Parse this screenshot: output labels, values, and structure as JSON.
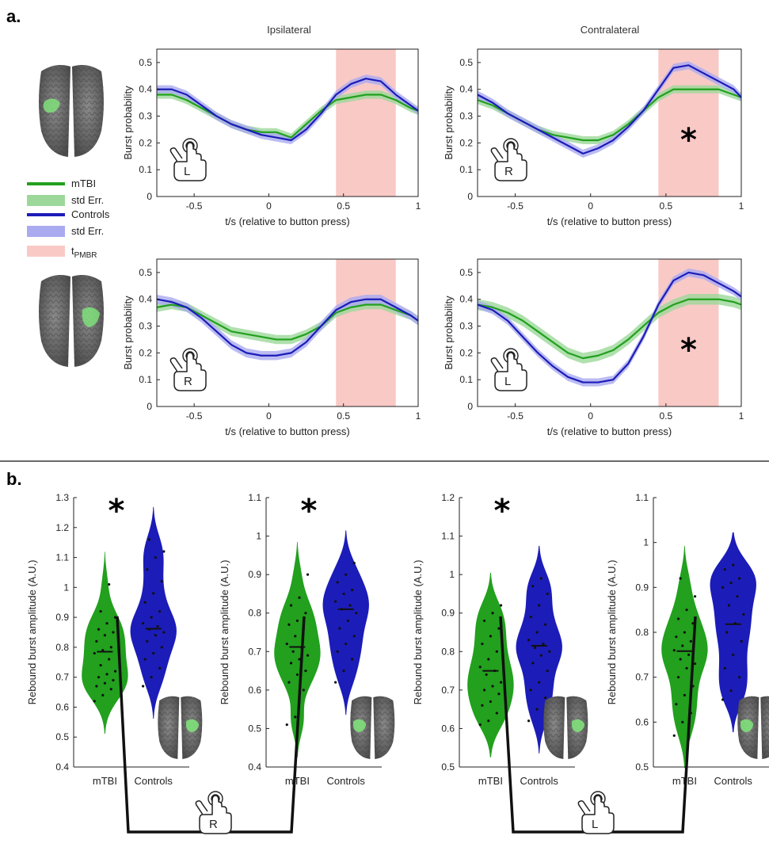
{
  "panel_a_label": "a.",
  "panel_b_label": "b.",
  "col_titles": [
    "Ipsilateral",
    "Contralateral"
  ],
  "colors": {
    "mtbi": "#22a01e",
    "mtbi_err": "#9cd89a",
    "controls": "#1c1cb8",
    "controls_err": "#aaaaf0",
    "pmbr": "#f9c9c6",
    "brain": "#6e6e6e",
    "brain_roi": "#7fe07a"
  },
  "legend": {
    "mtbi": "mTBI",
    "mtbi_err": "std Err.",
    "controls": "Controls",
    "controls_err": "std Err.",
    "pmbr_base": "t",
    "pmbr_sub": "PMBR"
  },
  "chart_data": [
    {
      "type": "line",
      "panel": "a-top-ipsilateral",
      "hand": "L",
      "xlabel": "t/s (relative to button press)",
      "ylabel": "Burst probability",
      "xlim": [
        -0.75,
        1
      ],
      "ylim": [
        0,
        0.55
      ],
      "xticks": [
        -0.5,
        0,
        0.5,
        1
      ],
      "xtick_labels": [
        "-0.5",
        "0",
        "0.5",
        "1"
      ],
      "yticks": [
        0,
        0.1,
        0.2,
        0.3,
        0.4,
        0.5
      ],
      "ytick_labels": [
        "0",
        "0.1",
        "0.2",
        "0.3",
        "0.4",
        "0.5"
      ],
      "pmbr_window": [
        0.45,
        0.85
      ],
      "significant": false,
      "x": [
        -0.75,
        -0.65,
        -0.55,
        -0.45,
        -0.35,
        -0.25,
        -0.15,
        -0.05,
        0.05,
        0.15,
        0.25,
        0.35,
        0.45,
        0.55,
        0.65,
        0.75,
        0.85,
        0.95,
        1.0
      ],
      "series": [
        {
          "name": "mTBI",
          "values": [
            0.38,
            0.38,
            0.36,
            0.33,
            0.3,
            0.27,
            0.25,
            0.24,
            0.24,
            0.22,
            0.27,
            0.32,
            0.36,
            0.37,
            0.38,
            0.38,
            0.36,
            0.33,
            0.32
          ],
          "err": 0.015
        },
        {
          "name": "Controls",
          "values": [
            0.4,
            0.4,
            0.38,
            0.34,
            0.3,
            0.27,
            0.25,
            0.23,
            0.22,
            0.21,
            0.25,
            0.31,
            0.38,
            0.42,
            0.44,
            0.43,
            0.38,
            0.34,
            0.32
          ],
          "err": 0.015
        }
      ]
    },
    {
      "type": "line",
      "panel": "a-top-contralateral",
      "hand": "R",
      "xlabel": "t/s (relative to button press)",
      "ylabel": "Burst probability",
      "xlim": [
        -0.75,
        1
      ],
      "ylim": [
        0,
        0.55
      ],
      "xticks": [
        -0.5,
        0,
        0.5,
        1
      ],
      "xtick_labels": [
        "-0.5",
        "0",
        "0.5",
        "1"
      ],
      "yticks": [
        0,
        0.1,
        0.2,
        0.3,
        0.4,
        0.5
      ],
      "ytick_labels": [
        "0",
        "0.1",
        "0.2",
        "0.3",
        "0.4",
        "0.5"
      ],
      "pmbr_window": [
        0.45,
        0.85
      ],
      "significant": true,
      "x": [
        -0.75,
        -0.65,
        -0.55,
        -0.45,
        -0.35,
        -0.25,
        -0.15,
        -0.05,
        0.05,
        0.15,
        0.25,
        0.35,
        0.45,
        0.55,
        0.65,
        0.75,
        0.85,
        0.95,
        1.0
      ],
      "series": [
        {
          "name": "mTBI",
          "values": [
            0.36,
            0.34,
            0.31,
            0.28,
            0.25,
            0.23,
            0.22,
            0.21,
            0.21,
            0.23,
            0.27,
            0.32,
            0.37,
            0.4,
            0.4,
            0.4,
            0.4,
            0.38,
            0.37
          ],
          "err": 0.015
        },
        {
          "name": "Controls",
          "values": [
            0.38,
            0.35,
            0.31,
            0.28,
            0.25,
            0.22,
            0.19,
            0.16,
            0.18,
            0.21,
            0.26,
            0.32,
            0.4,
            0.48,
            0.49,
            0.46,
            0.43,
            0.4,
            0.37
          ],
          "err": 0.015
        }
      ]
    },
    {
      "type": "line",
      "panel": "a-bottom-ipsilateral",
      "hand": "R",
      "xlabel": "t/s (relative to button press)",
      "ylabel": "Burst probability",
      "xlim": [
        -0.75,
        1
      ],
      "ylim": [
        0,
        0.55
      ],
      "xticks": [
        -0.5,
        0,
        0.5,
        1
      ],
      "xtick_labels": [
        "-0.5",
        "0",
        "0.5",
        "1"
      ],
      "yticks": [
        0,
        0.1,
        0.2,
        0.3,
        0.4,
        0.5
      ],
      "ytick_labels": [
        "0",
        "0.1",
        "0.2",
        "0.3",
        "0.4",
        "0.5"
      ],
      "pmbr_window": [
        0.45,
        0.85
      ],
      "significant": false,
      "x": [
        -0.75,
        -0.65,
        -0.55,
        -0.45,
        -0.35,
        -0.25,
        -0.15,
        -0.05,
        0.05,
        0.15,
        0.25,
        0.35,
        0.45,
        0.55,
        0.65,
        0.75,
        0.85,
        0.95,
        1.0
      ],
      "series": [
        {
          "name": "mTBI",
          "values": [
            0.37,
            0.38,
            0.37,
            0.34,
            0.31,
            0.28,
            0.27,
            0.26,
            0.25,
            0.25,
            0.27,
            0.3,
            0.35,
            0.37,
            0.38,
            0.38,
            0.36,
            0.34,
            0.32
          ],
          "err": 0.017
        },
        {
          "name": "Controls",
          "values": [
            0.4,
            0.39,
            0.37,
            0.33,
            0.28,
            0.23,
            0.2,
            0.19,
            0.19,
            0.2,
            0.24,
            0.3,
            0.36,
            0.39,
            0.4,
            0.4,
            0.37,
            0.34,
            0.32
          ],
          "err": 0.017
        }
      ]
    },
    {
      "type": "line",
      "panel": "a-bottom-contralateral",
      "hand": "L",
      "xlabel": "t/s (relative to button press)",
      "ylabel": "Burst probability",
      "xlim": [
        -0.75,
        1
      ],
      "ylim": [
        0,
        0.55
      ],
      "xticks": [
        -0.5,
        0,
        0.5,
        1
      ],
      "xtick_labels": [
        "-0.5",
        "0",
        "0.5",
        "1"
      ],
      "yticks": [
        0,
        0.1,
        0.2,
        0.3,
        0.4,
        0.5
      ],
      "ytick_labels": [
        "0",
        "0.1",
        "0.2",
        "0.3",
        "0.4",
        "0.5"
      ],
      "pmbr_window": [
        0.45,
        0.85
      ],
      "significant": true,
      "x": [
        -0.75,
        -0.65,
        -0.55,
        -0.45,
        -0.35,
        -0.25,
        -0.15,
        -0.05,
        0.05,
        0.15,
        0.25,
        0.35,
        0.45,
        0.55,
        0.65,
        0.75,
        0.85,
        0.95,
        1.0
      ],
      "series": [
        {
          "name": "mTBI",
          "values": [
            0.38,
            0.37,
            0.35,
            0.32,
            0.28,
            0.24,
            0.2,
            0.18,
            0.19,
            0.21,
            0.25,
            0.3,
            0.35,
            0.38,
            0.4,
            0.4,
            0.4,
            0.39,
            0.38
          ],
          "err": 0.02
        },
        {
          "name": "Controls",
          "values": [
            0.38,
            0.36,
            0.32,
            0.26,
            0.2,
            0.15,
            0.11,
            0.09,
            0.09,
            0.1,
            0.16,
            0.26,
            0.38,
            0.47,
            0.5,
            0.49,
            0.46,
            0.43,
            0.41
          ],
          "err": 0.015
        }
      ]
    },
    {
      "type": "violin",
      "panel": "b1",
      "categories": [
        "mTBI",
        "Controls"
      ],
      "ylabel": "Rebound burst amplitude (A.U.)",
      "ylim": [
        0.4,
        1.3
      ],
      "yticks": [
        0.4,
        0.5,
        0.6,
        0.7,
        0.8,
        0.9,
        1.0,
        1.1,
        1.2,
        1.3
      ],
      "ytick_labels": [
        "0.4",
        "0.5",
        "0.6",
        "0.7",
        "0.8",
        "0.9",
        "1",
        "1.1",
        "1.2",
        "1.3"
      ],
      "significant": true,
      "medians": [
        0.785,
        0.862
      ],
      "points": [
        [
          0.62,
          0.64,
          0.66,
          0.67,
          0.68,
          0.69,
          0.7,
          0.71,
          0.72,
          0.74,
          0.76,
          0.78,
          0.79,
          0.8,
          0.82,
          0.84,
          0.85,
          0.86,
          0.88,
          0.9,
          0.92,
          1.01
        ],
        [
          0.67,
          0.7,
          0.73,
          0.76,
          0.78,
          0.8,
          0.82,
          0.84,
          0.85,
          0.86,
          0.87,
          0.88,
          0.9,
          0.92,
          0.95,
          0.98,
          1.02,
          1.06,
          1.1,
          1.12,
          1.16
        ]
      ]
    },
    {
      "type": "violin",
      "panel": "b2",
      "categories": [
        "mTBI",
        "Controls"
      ],
      "ylabel": "Rebound burst amplitude (A.U.)",
      "ylim": [
        0.4,
        1.1
      ],
      "yticks": [
        0.4,
        0.5,
        0.6,
        0.7,
        0.8,
        0.9,
        1.0,
        1.1
      ],
      "ytick_labels": [
        "0.4",
        "0.5",
        "0.6",
        "0.7",
        "0.8",
        "0.9",
        "1",
        "1.1"
      ],
      "significant": true,
      "medians": [
        0.712,
        0.81
      ],
      "points": [
        [
          0.51,
          0.53,
          0.6,
          0.62,
          0.64,
          0.65,
          0.67,
          0.68,
          0.69,
          0.7,
          0.71,
          0.72,
          0.74,
          0.76,
          0.77,
          0.78,
          0.8,
          0.82,
          0.84,
          0.9
        ],
        [
          0.62,
          0.65,
          0.68,
          0.7,
          0.72,
          0.74,
          0.76,
          0.78,
          0.8,
          0.81,
          0.82,
          0.83,
          0.85,
          0.86,
          0.88,
          0.9,
          0.93
        ]
      ]
    },
    {
      "type": "violin",
      "panel": "b3",
      "categories": [
        "mTBI",
        "Controls"
      ],
      "ylabel": "Rebound burst amplitude (A.U.)",
      "ylim": [
        0.5,
        1.2
      ],
      "yticks": [
        0.5,
        0.6,
        0.7,
        0.8,
        0.9,
        1.0,
        1.1,
        1.2
      ],
      "ytick_labels": [
        "0.5",
        "0.6",
        "0.7",
        "0.8",
        "0.9",
        "1",
        "1.1",
        "1.2"
      ],
      "significant": true,
      "medians": [
        0.75,
        0.815
      ],
      "points": [
        [
          0.61,
          0.62,
          0.64,
          0.66,
          0.67,
          0.69,
          0.7,
          0.71,
          0.72,
          0.74,
          0.75,
          0.76,
          0.78,
          0.8,
          0.82,
          0.84,
          0.86,
          0.88,
          0.9,
          0.92
        ],
        [
          0.62,
          0.65,
          0.68,
          0.7,
          0.72,
          0.75,
          0.77,
          0.79,
          0.8,
          0.81,
          0.82,
          0.83,
          0.85,
          0.87,
          0.89,
          0.92,
          0.95,
          0.97,
          0.99
        ]
      ]
    },
    {
      "type": "violin",
      "panel": "b4",
      "categories": [
        "mTBI",
        "Controls"
      ],
      "ylabel": "Rebound burst amplitude (A.U.)",
      "ylim": [
        0.5,
        1.1
      ],
      "yticks": [
        0.5,
        0.6,
        0.7,
        0.8,
        0.9,
        1.0,
        1.1
      ],
      "ytick_labels": [
        "0.5",
        "0.6",
        "0.7",
        "0.8",
        "0.9",
        "1",
        "1.1"
      ],
      "significant": false,
      "medians": [
        0.758,
        0.818
      ],
      "points": [
        [
          0.57,
          0.6,
          0.62,
          0.64,
          0.66,
          0.68,
          0.7,
          0.72,
          0.73,
          0.74,
          0.75,
          0.76,
          0.77,
          0.78,
          0.79,
          0.8,
          0.82,
          0.83,
          0.85,
          0.88,
          0.92
        ],
        [
          0.65,
          0.67,
          0.7,
          0.72,
          0.75,
          0.78,
          0.8,
          0.82,
          0.84,
          0.86,
          0.88,
          0.9,
          0.91,
          0.92,
          0.94,
          0.95
        ]
      ]
    }
  ],
  "bottom_hands": [
    "R",
    "L"
  ],
  "star_symbol": "*"
}
